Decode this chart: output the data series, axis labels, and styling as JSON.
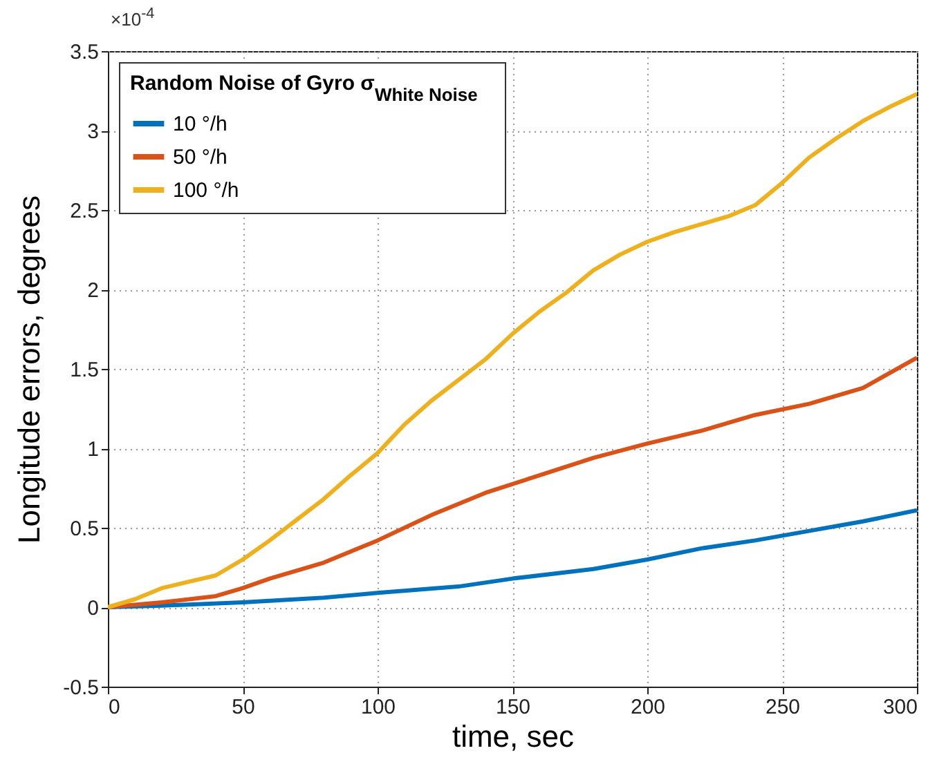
{
  "chart_data": {
    "type": "line",
    "xlabel": "time, sec",
    "ylabel": "Longitude errors, degrees",
    "legend_title": "Random Noise of Gyro σ$_{White Noise}$",
    "annotations": [
      "×10$^{-4}$"
    ],
    "x": [
      0,
      10,
      20,
      30,
      40,
      50,
      60,
      70,
      80,
      90,
      100,
      110,
      120,
      130,
      140,
      150,
      160,
      170,
      180,
      190,
      200,
      210,
      220,
      230,
      240,
      250,
      260,
      270,
      280,
      290,
      300
    ],
    "series": [
      {
        "name": "10 °/h",
        "color": "#0072bd",
        "x": [
          0,
          20,
          50,
          80,
          100,
          130,
          150,
          180,
          200,
          220,
          240,
          260,
          280,
          300
        ],
        "values": [
          0,
          0.01,
          0.03,
          0.06,
          0.09,
          0.13,
          0.18,
          0.24,
          0.3,
          0.37,
          0.42,
          0.48,
          0.54,
          0.61
        ]
      },
      {
        "name": "50 °/h",
        "color": "#d95319",
        "x": [
          0,
          20,
          40,
          50,
          60,
          80,
          100,
          120,
          140,
          160,
          180,
          200,
          220,
          240,
          260,
          280,
          300
        ],
        "values": [
          0,
          0.03,
          0.07,
          0.12,
          0.18,
          0.28,
          0.42,
          0.58,
          0.72,
          0.83,
          0.94,
          1.03,
          1.11,
          1.21,
          1.28,
          1.38,
          1.57
        ]
      },
      {
        "name": "100 °/h",
        "color": "#edb120",
        "values": [
          0,
          0.05,
          0.12,
          0.16,
          0.2,
          0.3,
          0.42,
          0.55,
          0.68,
          0.83,
          0.97,
          1.15,
          1.3,
          1.43,
          1.56,
          1.72,
          1.86,
          1.98,
          2.12,
          2.22,
          2.3,
          2.36,
          2.41,
          2.46,
          2.53,
          2.67,
          2.83,
          2.95,
          3.06,
          3.15,
          3.23
        ]
      }
    ],
    "xlim": [
      0,
      300
    ],
    "xticks": [
      0,
      50,
      100,
      150,
      200,
      250,
      300
    ],
    "ylim": [
      -0.5,
      3.5
    ],
    "yticks": [
      -0.5,
      0,
      0.5,
      1,
      1.5,
      2,
      2.5,
      3,
      3.5
    ],
    "grid": true,
    "legend": "top left",
    "marker": "none",
    "line_style": "solid"
  }
}
